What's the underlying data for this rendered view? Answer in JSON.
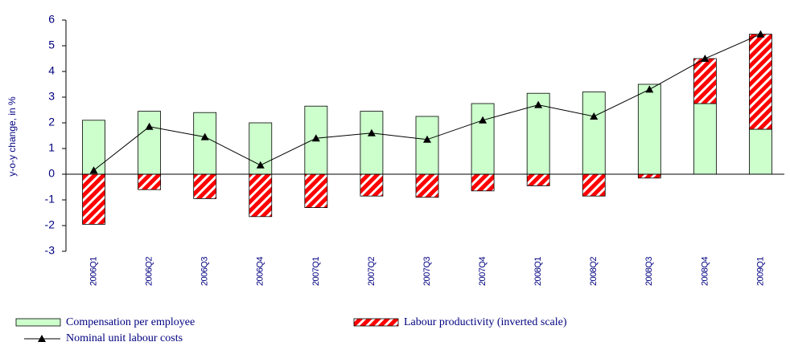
{
  "chart_data": {
    "type": "bar",
    "stacked": true,
    "y_label": "y-o-y change, in %",
    "categories": [
      "2006Q1",
      "2006Q2",
      "2006Q3",
      "2006Q4",
      "2007Q1",
      "2007Q2",
      "2007Q3",
      "2007Q4",
      "2008Q1",
      "2008Q2",
      "2008Q3",
      "2008Q4",
      "2009Q1"
    ],
    "series": [
      {
        "name": "Compensation per employee",
        "color": "#ccffcc",
        "values": [
          2.1,
          2.45,
          2.4,
          2.0,
          2.65,
          2.45,
          2.25,
          2.75,
          3.15,
          3.2,
          3.5,
          2.75,
          1.75
        ]
      },
      {
        "name": "Labour productivity (inverted scale)",
        "color": "#ff0000",
        "values": [
          -1.95,
          -0.6,
          -0.95,
          -1.65,
          -1.3,
          -0.85,
          -0.9,
          -0.65,
          -0.45,
          -0.85,
          -0.15,
          1.75,
          3.7
        ]
      },
      {
        "name": "Nominal unit labour costs",
        "type": "line",
        "color": "#000000",
        "values": [
          0.15,
          1.85,
          1.45,
          0.35,
          1.4,
          1.6,
          1.35,
          2.1,
          2.7,
          2.25,
          3.3,
          4.5,
          5.45
        ]
      }
    ],
    "ylim": [
      -3,
      6
    ],
    "yticks": [
      -3,
      -2,
      -1,
      0,
      1,
      2,
      3,
      4,
      5,
      6
    ]
  }
}
